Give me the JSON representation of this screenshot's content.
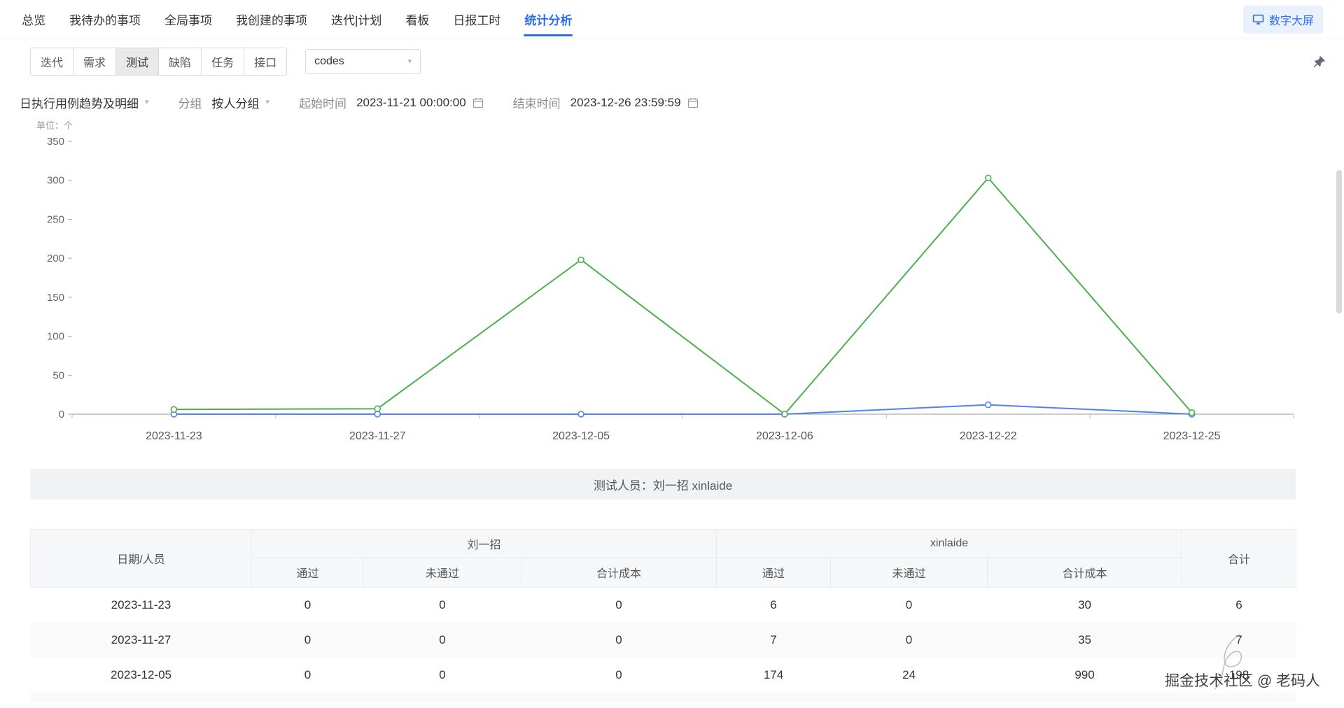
{
  "nav": {
    "items": [
      {
        "label": "总览",
        "active": false
      },
      {
        "label": "我待办的事项",
        "active": false
      },
      {
        "label": "全局事项",
        "active": false
      },
      {
        "label": "我创建的事项",
        "active": false
      },
      {
        "label": "迭代|计划",
        "active": false
      },
      {
        "label": "看板",
        "active": false
      },
      {
        "label": "日报工时",
        "active": false
      },
      {
        "label": "统计分析",
        "active": true
      }
    ],
    "big_screen_button": "数字大屏"
  },
  "toolbar": {
    "tabs": [
      "迭代",
      "需求",
      "测试",
      "缺陷",
      "任务",
      "接口"
    ],
    "active_tab": "测试",
    "dropdown_value": "codes"
  },
  "filters": {
    "report_type": "日执行用例趋势及明细",
    "group_label": "分组",
    "group_value": "按人分组",
    "start_label": "起始时间",
    "start_value": "2023-11-21 00:00:00",
    "end_label": "结束时间",
    "end_value": "2023-12-26 23:59:59"
  },
  "chart": {
    "unit_label": "单位：个"
  },
  "chart_data": {
    "type": "line",
    "title": "日执行用例趋势及明细",
    "unit": "个",
    "categories": [
      "2023-11-23",
      "2023-11-27",
      "2023-12-05",
      "2023-12-06",
      "2023-12-22",
      "2023-12-25"
    ],
    "series": [
      {
        "name": "刘一招",
        "color": "#4e82ee",
        "values": [
          0,
          0,
          0,
          0,
          12,
          0
        ]
      },
      {
        "name": "xinlaide",
        "color": "#4caf50",
        "values": [
          6,
          7,
          198,
          0,
          303,
          2
        ]
      }
    ],
    "ylim": [
      0,
      350
    ],
    "yticks": [
      0,
      50,
      100,
      150,
      200,
      250,
      300,
      350
    ],
    "grid": false,
    "legend_position": "none"
  },
  "tester_bar": {
    "text": "测试人员：刘一招  xinlaide"
  },
  "table": {
    "corner_header": "日期/人员",
    "total_header": "合计",
    "groups": [
      {
        "name": "刘一招",
        "columns": [
          "通过",
          "未通过",
          "合计成本"
        ]
      },
      {
        "name": "xinlaide",
        "columns": [
          "通过",
          "未通过",
          "合计成本"
        ]
      }
    ],
    "rows": [
      {
        "date": "2023-11-23",
        "values": [
          "0",
          "0",
          "0",
          "6",
          "0",
          "30"
        ],
        "total": "6"
      },
      {
        "date": "2023-11-27",
        "values": [
          "0",
          "0",
          "0",
          "7",
          "0",
          "35"
        ],
        "total": "7"
      },
      {
        "date": "2023-12-05",
        "values": [
          "0",
          "0",
          "0",
          "174",
          "24",
          "990"
        ],
        "total": "198"
      }
    ]
  },
  "watermark": {
    "text": "掘金技术社区 @ 老码人"
  },
  "icons": {
    "caret_down": "▾"
  }
}
